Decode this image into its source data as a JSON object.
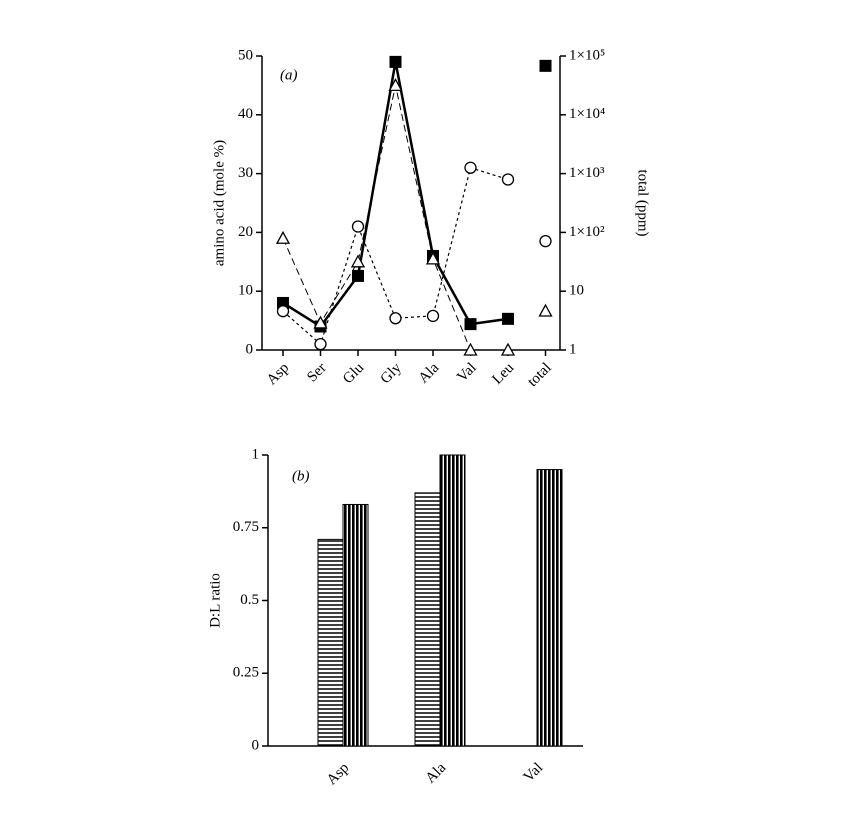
{
  "chart_data": [
    {
      "type": "line",
      "annotation": "(a)",
      "ylabel": "amino acid (mole %)",
      "y2label": "total (ppm)",
      "categories": [
        "Asp",
        "Ser",
        "Glu",
        "Gly",
        "Ala",
        "Val",
        "Leu",
        "total"
      ],
      "ylim": [
        0,
        50
      ],
      "yticks": [
        0,
        10,
        20,
        30,
        40,
        50
      ],
      "y2lim": [
        1,
        100000
      ],
      "y2log": true,
      "y2ticks": [
        1,
        10,
        {
          "value": 100,
          "label": "1×10²"
        },
        {
          "value": 1000,
          "label": "1×10³"
        },
        {
          "value": 10000,
          "label": "1×10⁴"
        },
        {
          "value": 100000,
          "label": "1×10⁵"
        }
      ],
      "series": [
        {
          "color": "#000000",
          "marker": "square",
          "line": "solid",
          "values": [
            8,
            4,
            12.6,
            49,
            16,
            4.4,
            5.3,
            null
          ]
        },
        {
          "color": "#000000",
          "marker": "circle",
          "line": "dotted",
          "values": [
            6.6,
            1,
            21,
            5.4,
            5.8,
            31,
            29,
            null
          ]
        },
        {
          "color": "#000000",
          "marker": "triangle",
          "line": "dashed",
          "values": [
            19,
            4.6,
            15,
            45,
            15.5,
            0,
            0,
            null
          ]
        },
        {
          "color": "#000000",
          "marker": "square",
          "axis": "y2",
          "values": [
            null,
            null,
            null,
            null,
            null,
            null,
            null,
            68000
          ]
        },
        {
          "color": "#000000",
          "marker": "circle",
          "axis": "y2",
          "values": [
            null,
            null,
            null,
            null,
            null,
            null,
            null,
            71
          ]
        },
        {
          "color": "#000000",
          "marker": "triangle",
          "axis": "y2",
          "values": [
            null,
            null,
            null,
            null,
            null,
            null,
            null,
            4.6
          ]
        }
      ]
    },
    {
      "type": "bar",
      "annotation": "(b)",
      "ylabel": "D:L ratio",
      "categories": [
        "Asp",
        "Ala",
        "Val"
      ],
      "ylim": [
        0,
        1
      ],
      "yticks": [
        0,
        0.25,
        0.5,
        0.75,
        1
      ],
      "series": [
        {
          "color": "#000000",
          "pattern": "horizontal",
          "values": [
            0.71,
            0.87,
            null
          ]
        },
        {
          "color": "#000000",
          "pattern": "vertical",
          "values": [
            0.83,
            1,
            0.95
          ]
        }
      ]
    }
  ]
}
